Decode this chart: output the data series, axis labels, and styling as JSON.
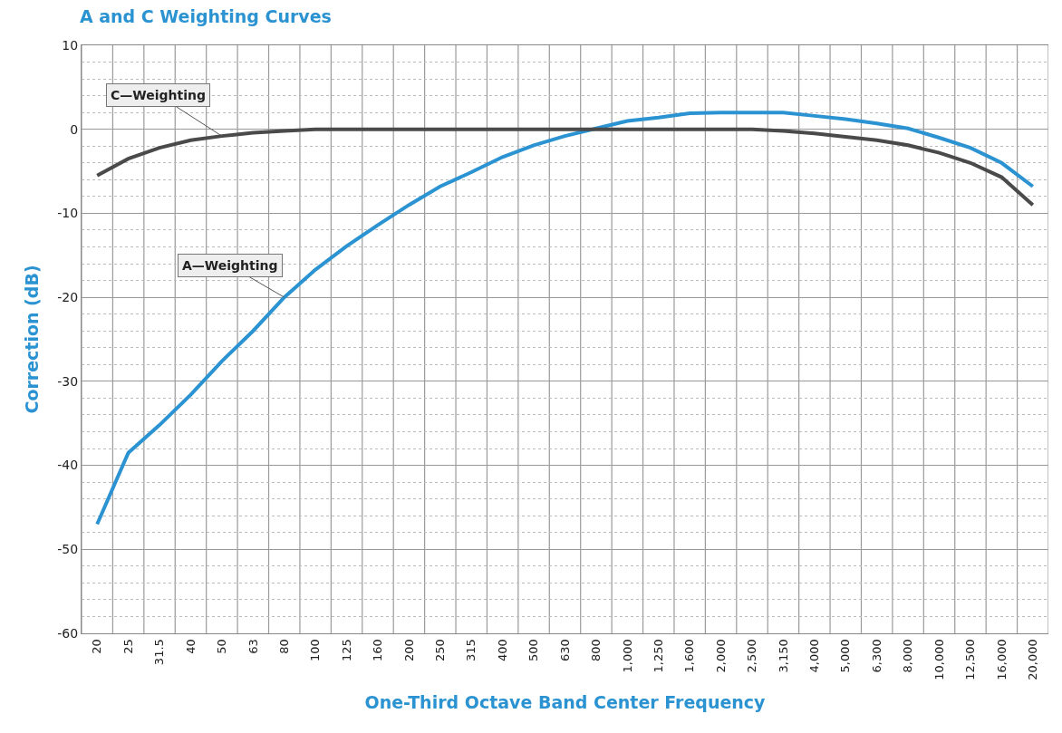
{
  "chart_data": {
    "type": "line",
    "title": "A and C Weighting Curves",
    "xlabel": "One-Third Octave Band Center Frequency",
    "ylabel": "Correction (dB)",
    "categories": [
      "20",
      "25",
      "31.5",
      "40",
      "50",
      "63",
      "80",
      "100",
      "125",
      "160",
      "200",
      "250",
      "315",
      "400",
      "500",
      "630",
      "800",
      "1,000",
      "1,250",
      "1,600",
      "2,000",
      "2,500",
      "3,150",
      "4,000",
      "5,000",
      "6,300",
      "8,000",
      "10,000",
      "12,500",
      "16,000",
      "20,000"
    ],
    "series": [
      {
        "name": "A—Weighting",
        "color": "#2b93d1",
        "values": [
          -47,
          -38.5,
          -35.2,
          -31.6,
          -27.6,
          -24,
          -20,
          -16.7,
          -13.9,
          -11.4,
          -9,
          -6.8,
          -5.1,
          -3.3,
          -1.9,
          -0.8,
          0.1,
          1,
          1.4,
          1.9,
          2,
          2,
          2,
          1.6,
          1.2,
          0.7,
          0.1,
          -1,
          -2.2,
          -4,
          -6.8
        ]
      },
      {
        "name": "C—Weighting",
        "color": "#4a4a4a",
        "values": [
          -5.5,
          -3.5,
          -2.2,
          -1.3,
          -0.8,
          -0.4,
          -0.2,
          0,
          0,
          0,
          0,
          0,
          0,
          0,
          0,
          0,
          0,
          0,
          0,
          0,
          0,
          0,
          -0.2,
          -0.5,
          -0.9,
          -1.3,
          -1.9,
          -2.8,
          -4,
          -5.7,
          -9
        ]
      }
    ],
    "ylim": [
      -60,
      10
    ],
    "yticks": [
      -60,
      -50,
      -40,
      -30,
      -20,
      -10,
      0,
      10
    ],
    "grid": true,
    "legend": false
  }
}
